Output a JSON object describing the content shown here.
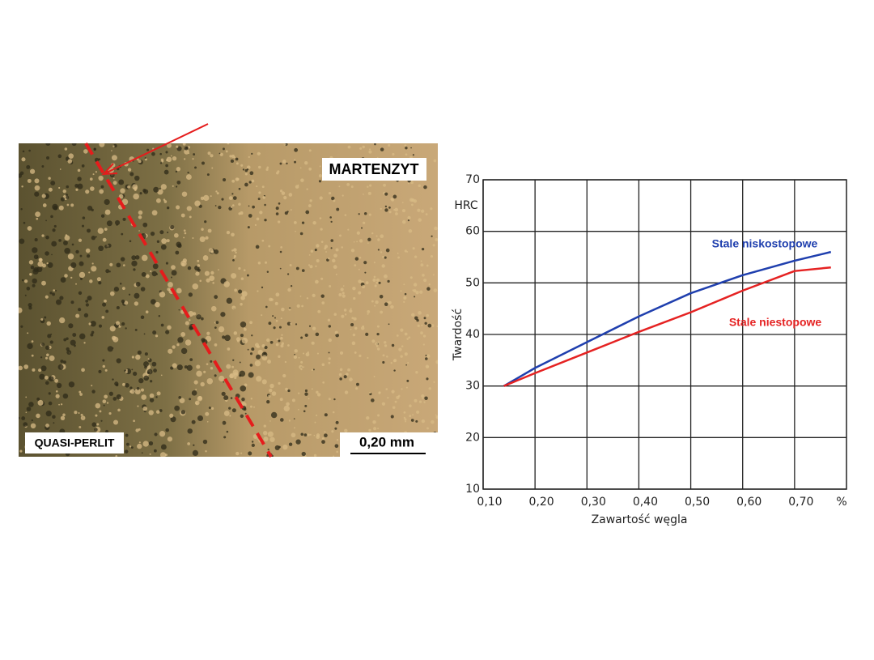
{
  "micrograph": {
    "label_top": "MARTENZYT",
    "label_bottom": "QUASI-PERLIT",
    "scale_bar": "0,20 mm"
  },
  "chart_data": {
    "type": "line",
    "xlabel": "Zawartość węgla",
    "ylabel": "Twardość",
    "y_unit": "HRC",
    "x_unit": "%",
    "x": [
      0.14,
      0.2,
      0.3,
      0.4,
      0.5,
      0.6,
      0.7,
      0.77
    ],
    "series": [
      {
        "name": "Stale niskostopowe",
        "color": "#1f3fae",
        "values": [
          30,
          33.5,
          38.5,
          43.5,
          48,
          51.5,
          54.3,
          56
        ]
      },
      {
        "name": "Stale niestopowe",
        "color": "#e52222",
        "values": [
          30,
          32.5,
          36.5,
          40.5,
          44.3,
          48.5,
          52.3,
          53
        ]
      }
    ],
    "xlim": [
      0.1,
      0.8
    ],
    "ylim": [
      10,
      70
    ],
    "xticks": [
      {
        "value": 0.1,
        "label": "0,10"
      },
      {
        "value": 0.2,
        "label": "0,20"
      },
      {
        "value": 0.3,
        "label": "0,30"
      },
      {
        "value": 0.4,
        "label": "0,40"
      },
      {
        "value": 0.5,
        "label": "0,50"
      },
      {
        "value": 0.6,
        "label": "0,60"
      },
      {
        "value": 0.7,
        "label": "0,70"
      }
    ],
    "yticks": [
      10,
      20,
      30,
      40,
      50,
      60,
      70
    ],
    "grid": true
  }
}
